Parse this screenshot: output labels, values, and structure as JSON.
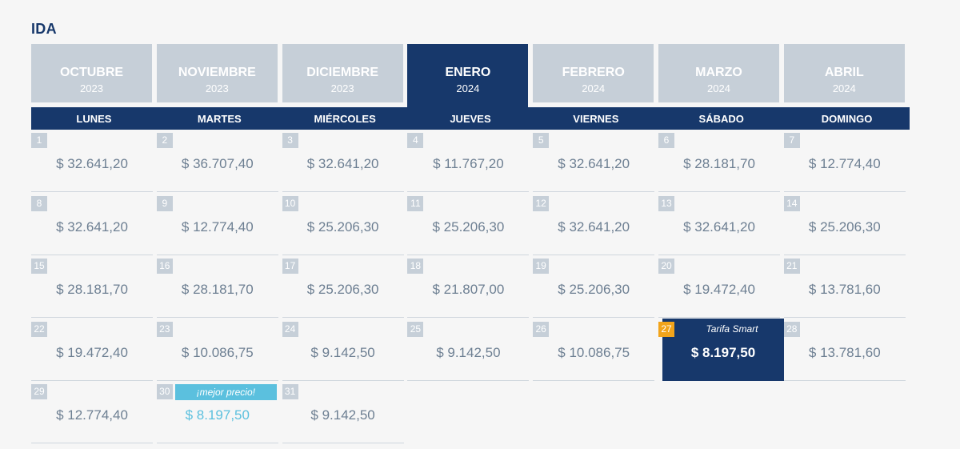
{
  "section_title": "IDA",
  "months": [
    {
      "name": "OCTUBRE",
      "year": "2023",
      "active": false
    },
    {
      "name": "NOVIEMBRE",
      "year": "2023",
      "active": false
    },
    {
      "name": "DICIEMBRE",
      "year": "2023",
      "active": false
    },
    {
      "name": "ENERO",
      "year": "2024",
      "active": true
    },
    {
      "name": "FEBRERO",
      "year": "2024",
      "active": false
    },
    {
      "name": "MARZO",
      "year": "2024",
      "active": false
    },
    {
      "name": "ABRIL",
      "year": "2024",
      "active": false
    }
  ],
  "weekdays": [
    "LUNES",
    "MARTES",
    "MIÉRCOLES",
    "JUEVES",
    "VIERNES",
    "SÁBADO",
    "DOMINGO"
  ],
  "days": [
    {
      "day": "1",
      "price": "$ 32.641,20"
    },
    {
      "day": "2",
      "price": "$ 36.707,40"
    },
    {
      "day": "3",
      "price": "$ 32.641,20"
    },
    {
      "day": "4",
      "price": "$ 11.767,20"
    },
    {
      "day": "5",
      "price": "$ 32.641,20"
    },
    {
      "day": "6",
      "price": "$ 28.181,70"
    },
    {
      "day": "7",
      "price": "$ 12.774,40"
    },
    {
      "day": "8",
      "price": "$ 32.641,20"
    },
    {
      "day": "9",
      "price": "$ 12.774,40"
    },
    {
      "day": "10",
      "price": "$ 25.206,30"
    },
    {
      "day": "11",
      "price": "$ 25.206,30"
    },
    {
      "day": "12",
      "price": "$ 32.641,20"
    },
    {
      "day": "13",
      "price": "$ 32.641,20"
    },
    {
      "day": "14",
      "price": "$ 25.206,30"
    },
    {
      "day": "15",
      "price": "$ 28.181,70"
    },
    {
      "day": "16",
      "price": "$ 28.181,70"
    },
    {
      "day": "17",
      "price": "$ 25.206,30"
    },
    {
      "day": "18",
      "price": "$ 21.807,00"
    },
    {
      "day": "19",
      "price": "$ 25.206,30"
    },
    {
      "day": "20",
      "price": "$ 19.472,40"
    },
    {
      "day": "21",
      "price": "$ 13.781,60"
    },
    {
      "day": "22",
      "price": "$ 19.472,40"
    },
    {
      "day": "23",
      "price": "$ 10.086,75"
    },
    {
      "day": "24",
      "price": "$ 9.142,50"
    },
    {
      "day": "25",
      "price": "$ 9.142,50"
    },
    {
      "day": "26",
      "price": "$ 10.086,75"
    },
    {
      "day": "27",
      "price": "$ 8.197,50",
      "badge": "Tarifa Smart",
      "style": "smart"
    },
    {
      "day": "28",
      "price": "$ 13.781,60"
    },
    {
      "day": "29",
      "price": "$ 12.774,40"
    },
    {
      "day": "30",
      "price": "$ 8.197,50",
      "badge": "¡mejor precio!",
      "style": "best"
    },
    {
      "day": "31",
      "price": "$ 9.142,50"
    }
  ],
  "colors": {
    "primary": "#17386b",
    "inactive_tab": "#c6cfd8",
    "smart_day": "#f2a41b",
    "best_price": "#5bc0de",
    "price_text": "#6d7f92"
  }
}
